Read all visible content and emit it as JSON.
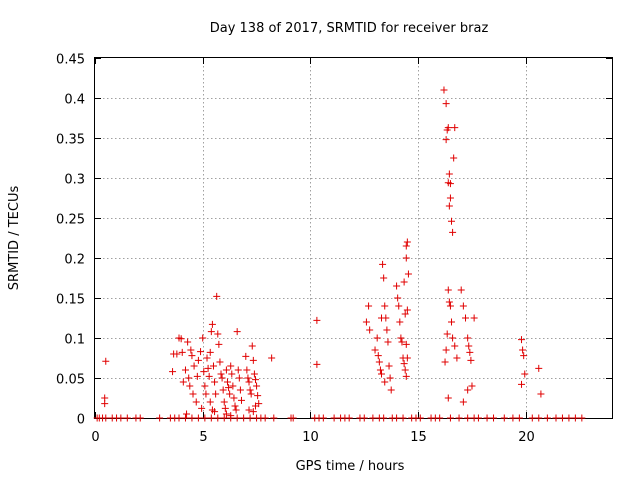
{
  "chart_data": {
    "type": "scatter",
    "title": "Day 138 of 2017, SRMTID for receiver braz",
    "xlabel": "GPS time / hours",
    "ylabel": "SRMTID / TECUs",
    "xlim": [
      0,
      24
    ],
    "ylim": [
      0,
      0.45
    ],
    "x_ticks": [
      0,
      5,
      10,
      15,
      20
    ],
    "x_tick_labels": [
      "0",
      "5",
      "10",
      "15",
      "20"
    ],
    "y_ticks": [
      0,
      0.05,
      0.1,
      0.15,
      0.2,
      0.25,
      0.3,
      0.35,
      0.4,
      0.45
    ],
    "y_tick_labels": [
      "0",
      "0.05",
      "0.1",
      "0.15",
      "0.2",
      "0.25",
      "0.3",
      "0.35",
      "0.4",
      "0.45"
    ],
    "grid": true,
    "marker": "+",
    "color": "#e00000",
    "series": [
      {
        "name": "SRMTID",
        "points": [
          [
            0.1,
            0
          ],
          [
            0.2,
            0
          ],
          [
            0.35,
            0
          ],
          [
            0.5,
            0
          ],
          [
            0.8,
            0
          ],
          [
            1.0,
            0
          ],
          [
            1.2,
            0
          ],
          [
            1.5,
            0
          ],
          [
            1.9,
            0
          ],
          [
            2.1,
            0
          ],
          [
            3.0,
            0
          ],
          [
            3.5,
            0
          ],
          [
            3.7,
            0
          ],
          [
            3.9,
            0
          ],
          [
            4.2,
            0
          ],
          [
            4.5,
            0
          ],
          [
            4.8,
            0
          ],
          [
            5.1,
            0
          ],
          [
            5.4,
            0
          ],
          [
            5.7,
            0
          ],
          [
            6.0,
            0
          ],
          [
            6.3,
            0
          ],
          [
            6.6,
            0
          ],
          [
            6.9,
            0
          ],
          [
            7.2,
            0
          ],
          [
            7.5,
            0
          ],
          [
            7.7,
            0
          ],
          [
            7.9,
            0
          ],
          [
            8.3,
            0
          ],
          [
            9.1,
            0
          ],
          [
            9.2,
            0
          ],
          [
            10.2,
            0
          ],
          [
            10.4,
            0
          ],
          [
            10.6,
            0
          ],
          [
            11.1,
            0
          ],
          [
            11.4,
            0
          ],
          [
            11.6,
            0
          ],
          [
            11.8,
            0
          ],
          [
            12.3,
            0
          ],
          [
            12.5,
            0
          ],
          [
            12.9,
            0
          ],
          [
            13.2,
            0
          ],
          [
            13.4,
            0
          ],
          [
            13.8,
            0
          ],
          [
            14.0,
            0
          ],
          [
            14.3,
            0
          ],
          [
            14.7,
            0
          ],
          [
            14.9,
            0
          ],
          [
            15.1,
            0
          ],
          [
            15.6,
            0
          ],
          [
            15.8,
            0
          ],
          [
            16.0,
            0
          ],
          [
            16.5,
            0
          ],
          [
            16.9,
            0
          ],
          [
            17.3,
            0
          ],
          [
            17.6,
            0
          ],
          [
            17.8,
            0
          ],
          [
            18.2,
            0
          ],
          [
            18.5,
            0
          ],
          [
            19.0,
            0
          ],
          [
            19.4,
            0
          ],
          [
            19.7,
            0
          ],
          [
            20.3,
            0
          ],
          [
            20.6,
            0
          ],
          [
            21.0,
            0
          ],
          [
            21.4,
            0
          ],
          [
            21.7,
            0
          ],
          [
            22.0,
            0
          ],
          [
            22.3,
            0
          ],
          [
            22.6,
            0
          ],
          [
            0.5,
            0.071
          ],
          [
            0.45,
            0.025
          ],
          [
            0.45,
            0.018
          ],
          [
            3.6,
            0.058
          ],
          [
            3.65,
            0.08
          ],
          [
            3.8,
            0.08
          ],
          [
            3.9,
            0.1
          ],
          [
            4.0,
            0.099
          ],
          [
            4.05,
            0.082
          ],
          [
            4.1,
            0.045
          ],
          [
            4.2,
            0.06
          ],
          [
            4.25,
            0.005
          ],
          [
            4.3,
            0.095
          ],
          [
            4.35,
            0.05
          ],
          [
            4.4,
            0.04
          ],
          [
            4.45,
            0.085
          ],
          [
            4.5,
            0.078
          ],
          [
            4.55,
            0.03
          ],
          [
            4.6,
            0.065
          ],
          [
            4.7,
            0.02
          ],
          [
            4.75,
            0.052
          ],
          [
            4.8,
            0.072
          ],
          [
            4.9,
            0.083
          ],
          [
            4.95,
            0.012
          ],
          [
            5.0,
            0.1
          ],
          [
            5.05,
            0.058
          ],
          [
            5.1,
            0.04
          ],
          [
            5.15,
            0.03
          ],
          [
            5.2,
            0.075
          ],
          [
            5.25,
            0.062
          ],
          [
            5.3,
            0.052
          ],
          [
            5.35,
            0.082
          ],
          [
            5.4,
            0.108
          ],
          [
            5.45,
            0.117
          ],
          [
            5.5,
            0.065
          ],
          [
            5.55,
            0.045
          ],
          [
            5.6,
            0.03
          ],
          [
            5.65,
            0.152
          ],
          [
            5.7,
            0.105
          ],
          [
            5.75,
            0.092
          ],
          [
            5.8,
            0.07
          ],
          [
            5.85,
            0.055
          ],
          [
            5.9,
            0.05
          ],
          [
            5.95,
            0.035
          ],
          [
            6.0,
            0.02
          ],
          [
            6.05,
            0.012
          ],
          [
            6.1,
            0.06
          ],
          [
            6.15,
            0.045
          ],
          [
            6.2,
            0.038
          ],
          [
            6.25,
            0.03
          ],
          [
            6.3,
            0.065
          ],
          [
            6.35,
            0.055
          ],
          [
            6.4,
            0.04
          ],
          [
            6.45,
            0.025
          ],
          [
            6.5,
            0.015
          ],
          [
            6.55,
            0.01
          ],
          [
            6.6,
            0.108
          ],
          [
            6.65,
            0.06
          ],
          [
            6.7,
            0.05
          ],
          [
            6.75,
            0.035
          ],
          [
            6.8,
            0.022
          ],
          [
            5.35,
            0.02
          ],
          [
            5.45,
            0.01
          ],
          [
            5.55,
            0.008
          ],
          [
            6.1,
            0.005
          ],
          [
            6.3,
            0.003
          ],
          [
            7.0,
            0.077
          ],
          [
            7.05,
            0.06
          ],
          [
            7.1,
            0.05
          ],
          [
            7.15,
            0.045
          ],
          [
            7.2,
            0.035
          ],
          [
            7.25,
            0.03
          ],
          [
            7.3,
            0.09
          ],
          [
            7.35,
            0.072
          ],
          [
            7.4,
            0.055
          ],
          [
            7.45,
            0.048
          ],
          [
            7.5,
            0.04
          ],
          [
            7.55,
            0.028
          ],
          [
            7.6,
            0.018
          ],
          [
            7.15,
            0.01
          ],
          [
            7.35,
            0.008
          ],
          [
            7.45,
            0.015
          ],
          [
            8.2,
            0.075
          ],
          [
            10.3,
            0.122
          ],
          [
            10.3,
            0.067
          ],
          [
            12.6,
            0.12
          ],
          [
            12.7,
            0.14
          ],
          [
            12.75,
            0.11
          ],
          [
            13.0,
            0.085
          ],
          [
            13.1,
            0.1
          ],
          [
            13.15,
            0.078
          ],
          [
            13.2,
            0.07
          ],
          [
            13.25,
            0.06
          ],
          [
            13.3,
            0.055
          ],
          [
            13.35,
            0.192
          ],
          [
            13.4,
            0.175
          ],
          [
            13.45,
            0.14
          ],
          [
            13.5,
            0.125
          ],
          [
            13.55,
            0.11
          ],
          [
            13.6,
            0.095
          ],
          [
            13.65,
            0.065
          ],
          [
            13.7,
            0.05
          ],
          [
            13.75,
            0.035
          ],
          [
            13.3,
            0.125
          ],
          [
            13.45,
            0.045
          ],
          [
            14.0,
            0.165
          ],
          [
            14.05,
            0.15
          ],
          [
            14.1,
            0.14
          ],
          [
            14.15,
            0.12
          ],
          [
            14.2,
            0.1
          ],
          [
            14.25,
            0.095
          ],
          [
            14.3,
            0.075
          ],
          [
            14.35,
            0.068
          ],
          [
            14.4,
            0.06
          ],
          [
            14.45,
            0.052
          ],
          [
            14.35,
            0.17
          ],
          [
            14.4,
            0.13
          ],
          [
            14.45,
            0.215
          ],
          [
            14.5,
            0.22
          ],
          [
            14.45,
            0.2
          ],
          [
            14.55,
            0.18
          ],
          [
            14.5,
            0.135
          ],
          [
            14.45,
            0.092
          ],
          [
            14.5,
            0.075
          ],
          [
            16.2,
            0.41
          ],
          [
            16.3,
            0.393
          ],
          [
            16.3,
            0.348
          ],
          [
            16.35,
            0.36
          ],
          [
            16.4,
            0.363
          ],
          [
            16.45,
            0.305
          ],
          [
            16.5,
            0.275
          ],
          [
            16.45,
            0.265
          ],
          [
            16.4,
            0.294
          ],
          [
            16.5,
            0.293
          ],
          [
            16.55,
            0.246
          ],
          [
            16.6,
            0.232
          ],
          [
            16.65,
            0.325
          ],
          [
            16.7,
            0.363
          ],
          [
            16.4,
            0.16
          ],
          [
            16.45,
            0.145
          ],
          [
            16.5,
            0.14
          ],
          [
            16.55,
            0.12
          ],
          [
            16.6,
            0.1
          ],
          [
            16.35,
            0.105
          ],
          [
            16.3,
            0.085
          ],
          [
            16.25,
            0.07
          ],
          [
            16.4,
            0.025
          ],
          [
            16.7,
            0.09
          ],
          [
            16.8,
            0.075
          ],
          [
            17.0,
            0.16
          ],
          [
            17.1,
            0.14
          ],
          [
            17.2,
            0.125
          ],
          [
            17.3,
            0.1
          ],
          [
            17.35,
            0.09
          ],
          [
            17.4,
            0.082
          ],
          [
            17.45,
            0.072
          ],
          [
            17.5,
            0.04
          ],
          [
            17.3,
            0.035
          ],
          [
            17.6,
            0.125
          ],
          [
            17.1,
            0.02
          ],
          [
            19.8,
            0.098
          ],
          [
            19.85,
            0.085
          ],
          [
            19.9,
            0.078
          ],
          [
            19.95,
            0.055
          ],
          [
            19.8,
            0.042
          ],
          [
            20.6,
            0.062
          ],
          [
            20.7,
            0.03
          ]
        ]
      }
    ]
  }
}
